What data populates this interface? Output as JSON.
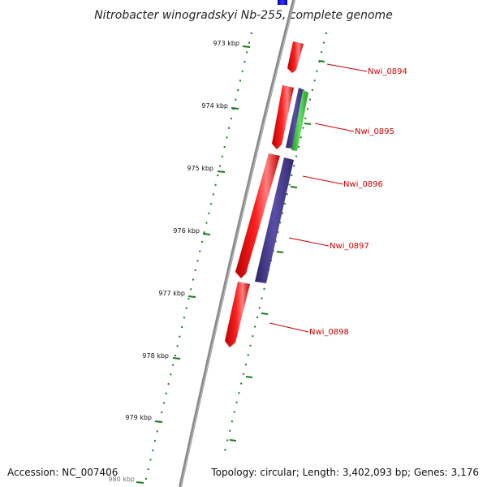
{
  "title": "Nitrobacter winogradskyi Nb-255, complete genome",
  "accession": "Accession: NC_007406",
  "summary": "Topology: circular; Length: 3,402,093 bp; Genes: 3,176",
  "tick_labels": [
    "973 kbp",
    "974 kbp",
    "975 kbp",
    "976 kbp",
    "977 kbp",
    "978 kbp",
    "979 kbp",
    "980 kbp"
  ],
  "gene_labels": [
    "Nwi_0894",
    "Nwi_0895",
    "Nwi_0896",
    "Nwi_0897",
    "Nwi_0898"
  ],
  "colors": {
    "forward_gene": "#ff0000",
    "reverse_gene": "#4b3f8f",
    "rna_gene": "#33cc33",
    "tick": "#1a7a1a",
    "backbone": "#888888",
    "label": "#cc0000",
    "blue_feature": "#0000dd"
  }
}
